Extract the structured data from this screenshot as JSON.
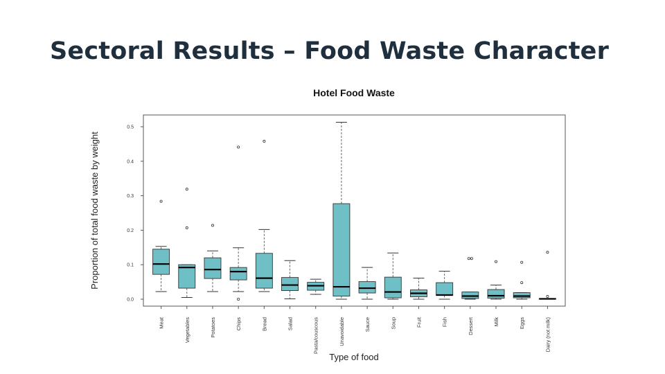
{
  "slide": {
    "title": "Sectoral Results – Food Waste Character"
  },
  "colors": {
    "title": "#1f2f3d",
    "box_fill": "#6fbfc6",
    "box_stroke": "#333333",
    "median": "#000000",
    "whisker": "#555555"
  },
  "chart_data": {
    "type": "boxplot",
    "title": "Hotel Food Waste",
    "xlabel": "Type of food",
    "ylabel": "Proportion of total food waste by weight",
    "ylim": [
      -0.003,
      0.52
    ],
    "yticks": [
      0.0,
      0.1,
      0.2,
      0.3,
      0.4,
      0.5
    ],
    "ytick_labels": [
      "0.0",
      "0.1",
      "0.2",
      "0.3",
      "0.4",
      "0.5"
    ],
    "grid": false,
    "legend": "none",
    "categories": [
      "Meat",
      "Vegetables",
      "Potatoes",
      "Chips",
      "Bread",
      "Salad",
      "Pasta/couscous",
      "Unavoidable",
      "Sauce",
      "Soup",
      "Fruit",
      "Fish",
      "Dessert",
      "Milk",
      "Eggs",
      "Dairy (not milk)"
    ],
    "boxes": [
      {
        "whisker_low": 0.022,
        "q1": 0.072,
        "median": 0.102,
        "q3": 0.145,
        "whisker_high": 0.153,
        "outliers": [
          0.284
        ]
      },
      {
        "whisker_low": 0.005,
        "q1": 0.032,
        "median": 0.092,
        "q3": 0.1,
        "whisker_high": 0.1,
        "outliers": [
          0.207,
          0.319
        ]
      },
      {
        "whisker_low": 0.022,
        "q1": 0.06,
        "median": 0.086,
        "q3": 0.12,
        "whisker_high": 0.14,
        "outliers": [
          0.214
        ]
      },
      {
        "whisker_low": 0.022,
        "q1": 0.056,
        "median": 0.08,
        "q3": 0.092,
        "whisker_high": 0.149,
        "outliers": [
          0.0,
          0.441
        ]
      },
      {
        "whisker_low": 0.022,
        "q1": 0.032,
        "median": 0.061,
        "q3": 0.133,
        "whisker_high": 0.202,
        "outliers": [
          0.458
        ]
      },
      {
        "whisker_low": 0.001,
        "q1": 0.025,
        "median": 0.041,
        "q3": 0.063,
        "whisker_high": 0.112,
        "outliers": []
      },
      {
        "whisker_low": 0.014,
        "q1": 0.026,
        "median": 0.039,
        "q3": 0.049,
        "whisker_high": 0.058,
        "outliers": []
      },
      {
        "whisker_low": 0.0,
        "q1": 0.009,
        "median": 0.036,
        "q3": 0.277,
        "whisker_high": 0.513,
        "outliers": []
      },
      {
        "whisker_low": 0.0,
        "q1": 0.018,
        "median": 0.032,
        "q3": 0.051,
        "whisker_high": 0.092,
        "outliers": []
      },
      {
        "whisker_low": 0.0,
        "q1": 0.004,
        "median": 0.021,
        "q3": 0.064,
        "whisker_high": 0.134,
        "outliers": []
      },
      {
        "whisker_low": 0.0,
        "q1": 0.007,
        "median": 0.017,
        "q3": 0.027,
        "whisker_high": 0.061,
        "outliers": []
      },
      {
        "whisker_low": 0.0,
        "q1": 0.011,
        "median": 0.012,
        "q3": 0.048,
        "whisker_high": 0.081,
        "outliers": []
      },
      {
        "whisker_low": 0.0,
        "q1": 0.002,
        "median": 0.009,
        "q3": 0.021,
        "whisker_high": 0.021,
        "outliers": [
          0.118,
          0.118
        ]
      },
      {
        "whisker_low": 0.0,
        "q1": 0.003,
        "median": 0.01,
        "q3": 0.028,
        "whisker_high": 0.041,
        "outliers": [
          0.109
        ]
      },
      {
        "whisker_low": 0.0,
        "q1": 0.004,
        "median": 0.009,
        "q3": 0.019,
        "whisker_high": 0.019,
        "outliers": [
          0.048,
          0.107
        ]
      },
      {
        "whisker_low": 0.0,
        "q1": 0.0,
        "median": 0.001,
        "q3": 0.002,
        "whisker_high": 0.002,
        "outliers": [
          0.008,
          0.136
        ]
      }
    ]
  }
}
